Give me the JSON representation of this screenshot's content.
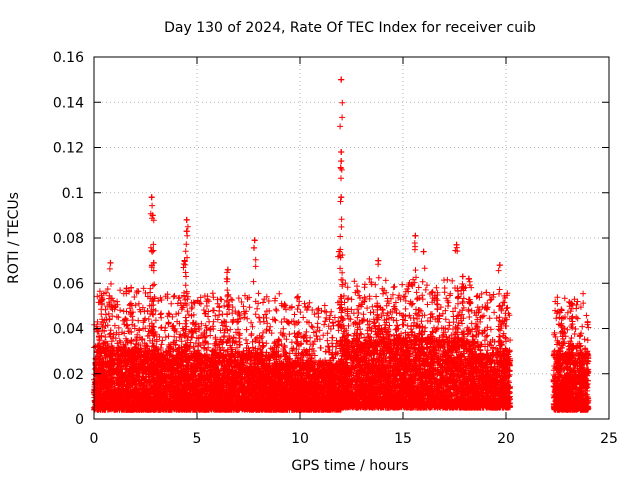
{
  "chart_data": {
    "type": "scatter",
    "title": "Day 130 of 2024, Rate Of TEC Index for receiver cuib",
    "xlabel": "GPS time / hours",
    "ylabel": "ROTI / TECUs",
    "xlim": [
      0,
      25
    ],
    "ylim": [
      0,
      0.16
    ],
    "xticks": [
      0,
      5,
      10,
      15,
      20,
      25
    ],
    "yticks": [
      0,
      0.02,
      0.04,
      0.06,
      0.08,
      0.1,
      0.12,
      0.14,
      0.16
    ],
    "xtick_labels": [
      "0",
      "5",
      "10",
      "15",
      "20",
      "25"
    ],
    "ytick_labels": [
      "0",
      "0.02",
      "0.04",
      "0.06",
      "0.08",
      "0.1",
      "0.12",
      "0.14",
      "0.16"
    ],
    "grid": true,
    "marker": "+",
    "marker_color": "#ff0000",
    "data_gaps_hours": [
      [
        20.2,
        22.3
      ]
    ],
    "notable_points": [
      {
        "x": 12.0,
        "y": 0.15
      },
      {
        "x": 12.0,
        "y": 0.118
      },
      {
        "x": 12.0,
        "y": 0.114
      },
      {
        "x": 12.0,
        "y": 0.098
      },
      {
        "x": 2.8,
        "y": 0.098
      },
      {
        "x": 2.85,
        "y": 0.09
      },
      {
        "x": 4.5,
        "y": 0.088
      },
      {
        "x": 4.5,
        "y": 0.083
      },
      {
        "x": 15.6,
        "y": 0.081
      },
      {
        "x": 7.8,
        "y": 0.079
      },
      {
        "x": 17.6,
        "y": 0.077
      },
      {
        "x": 16.0,
        "y": 0.074
      },
      {
        "x": 11.9,
        "y": 0.074
      },
      {
        "x": 4.4,
        "y": 0.07
      },
      {
        "x": 13.8,
        "y": 0.07
      },
      {
        "x": 2.9,
        "y": 0.069
      },
      {
        "x": 0.8,
        "y": 0.069
      },
      {
        "x": 19.7,
        "y": 0.068
      },
      {
        "x": 6.5,
        "y": 0.066
      },
      {
        "x": 17.9,
        "y": 0.063
      },
      {
        "x": 18.2,
        "y": 0.062
      },
      {
        "x": 1.8,
        "y": 0.058
      },
      {
        "x": 23.2,
        "y": 0.051
      },
      {
        "x": 22.7,
        "y": 0.048
      },
      {
        "x": 0.4,
        "y": 0.053
      },
      {
        "x": 19.7,
        "y": 0.05
      },
      {
        "x": 9.9,
        "y": 0.054
      }
    ],
    "background_cloud_bands": [
      {
        "x_start": 0.0,
        "x_end": 3.0,
        "typical_min": 0.004,
        "typical_max": 0.03
      },
      {
        "x_start": 3.0,
        "x_end": 9.0,
        "typical_min": 0.004,
        "typical_max": 0.028
      },
      {
        "x_start": 9.0,
        "x_end": 12.0,
        "typical_min": 0.004,
        "typical_max": 0.024
      },
      {
        "x_start": 12.0,
        "x_end": 18.5,
        "typical_min": 0.005,
        "typical_max": 0.034
      },
      {
        "x_start": 18.5,
        "x_end": 20.2,
        "typical_min": 0.005,
        "typical_max": 0.028
      },
      {
        "x_start": 22.3,
        "x_end": 24.0,
        "typical_min": 0.004,
        "typical_max": 0.028
      }
    ]
  }
}
